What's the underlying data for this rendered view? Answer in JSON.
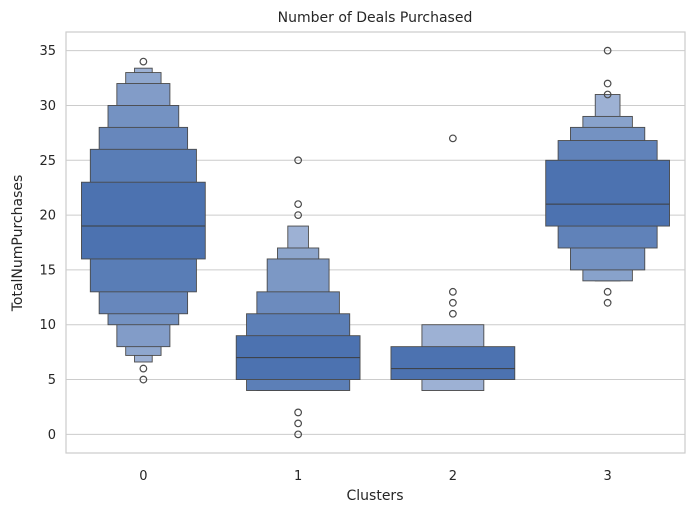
{
  "chart_data": {
    "type": "boxen",
    "title": "Number of Deals Purchased",
    "xlabel": "Clusters",
    "ylabel": "TotalNumPurchases",
    "categories": [
      "0",
      "1",
      "2",
      "3"
    ],
    "ylim": [
      -1.7,
      36.7
    ],
    "yticks": [
      0,
      5,
      10,
      15,
      20,
      25,
      30,
      35
    ],
    "grid": true,
    "color": "#4c72b0",
    "groups": [
      {
        "category": "0",
        "median": 19,
        "levels": [
          [
            16,
            23
          ],
          [
            13,
            26
          ],
          [
            11,
            28
          ],
          [
            10,
            30
          ],
          [
            8,
            32
          ],
          [
            7.2,
            33
          ],
          [
            6.6,
            33.4
          ]
        ],
        "outliers": [
          5,
          6,
          34
        ]
      },
      {
        "category": "1",
        "median": 7,
        "levels": [
          [
            5,
            9
          ],
          [
            4,
            11
          ],
          [
            4,
            13
          ],
          [
            4,
            16
          ],
          [
            4,
            17
          ],
          [
            4,
            19
          ]
        ],
        "outliers": [
          0,
          1,
          2,
          20,
          21,
          25
        ]
      },
      {
        "category": "2",
        "median": 6,
        "levels": [
          [
            5,
            8
          ],
          [
            4,
            10
          ]
        ],
        "outliers": [
          11,
          12,
          13,
          27
        ]
      },
      {
        "category": "3",
        "median": 21,
        "levels": [
          [
            19,
            25
          ],
          [
            17,
            26.8
          ],
          [
            15,
            28
          ],
          [
            14,
            29
          ],
          [
            14,
            31
          ]
        ],
        "outliers": [
          12,
          13,
          31,
          32,
          35
        ]
      }
    ]
  }
}
